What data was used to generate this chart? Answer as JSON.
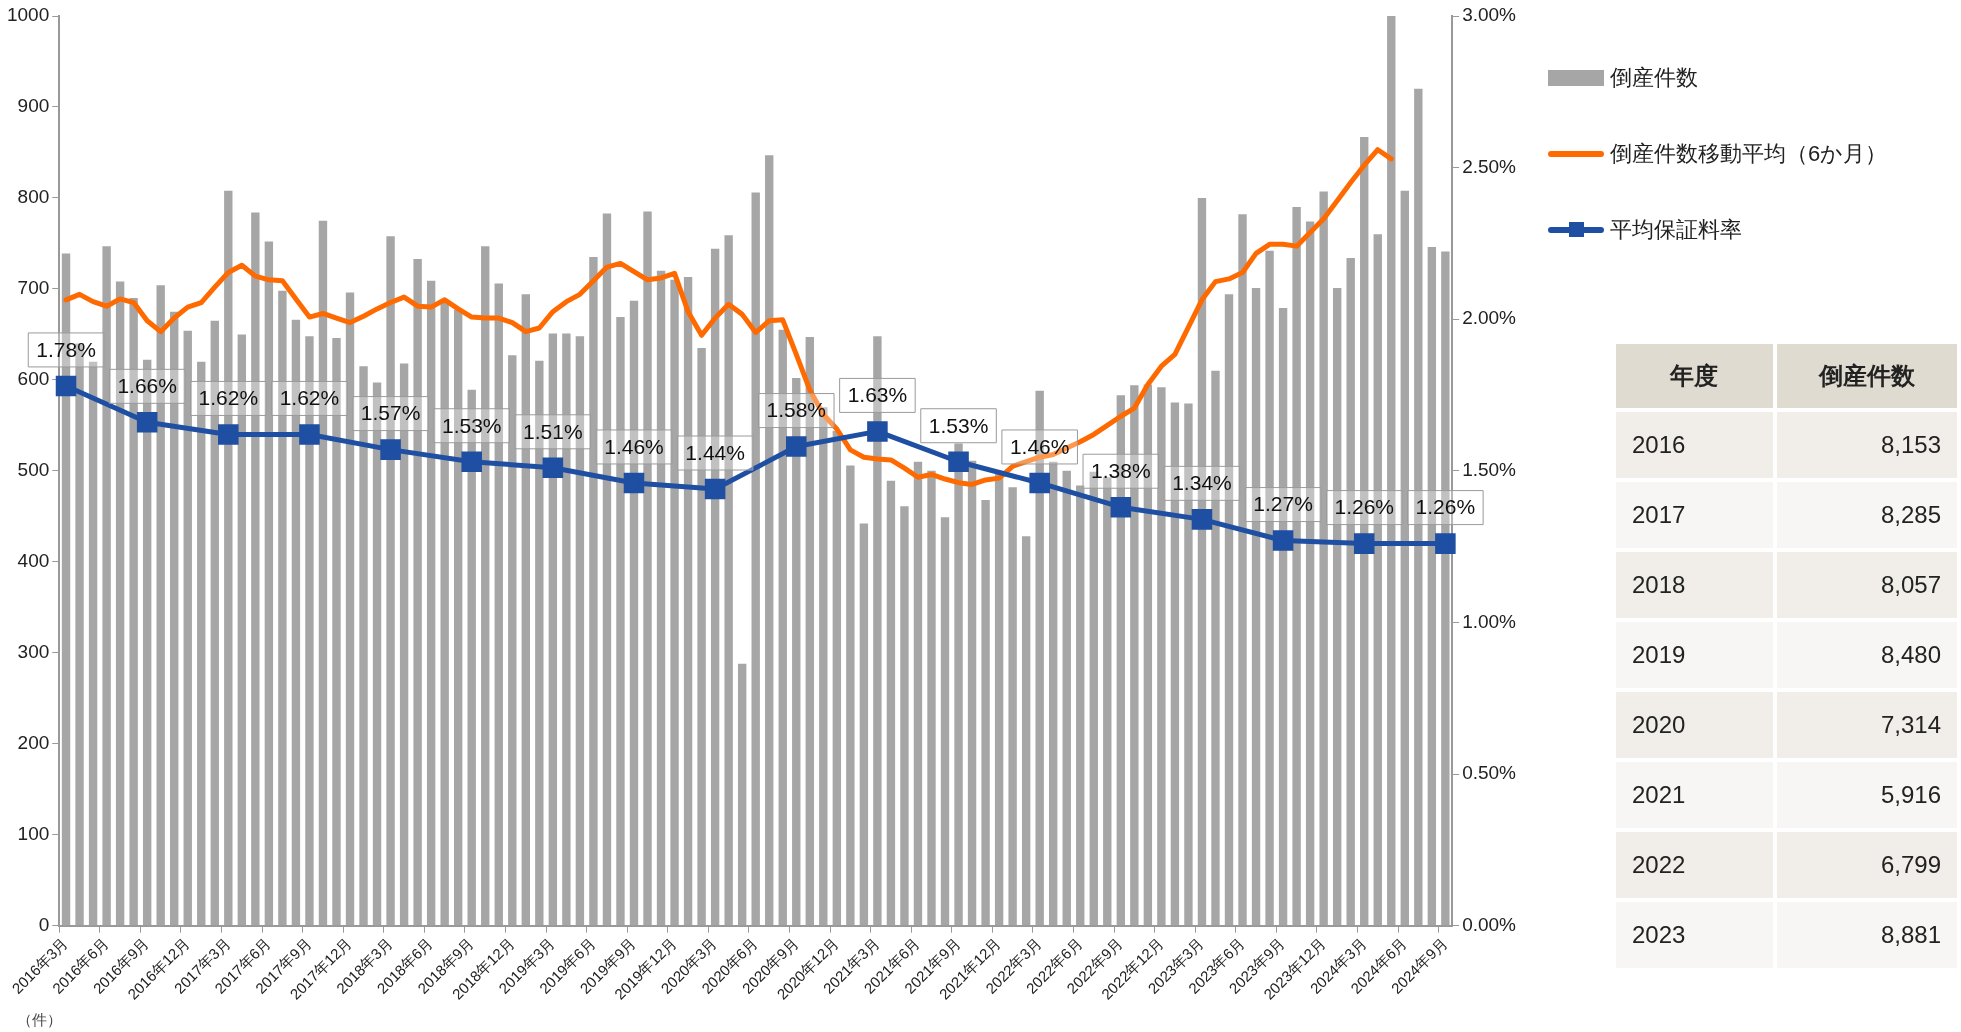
{
  "chart_data": [
    {
      "type": "bar",
      "ylabel": "（件）",
      "categories": [
        "2016年3月",
        null,
        null,
        "2016年6月",
        null,
        null,
        "2016年9月",
        null,
        null,
        "2016年12月",
        null,
        null,
        "2017年3月",
        null,
        null,
        "2017年6月",
        null,
        null,
        "2017年9月",
        null,
        null,
        "2017年12月",
        null,
        null,
        "2018年3月",
        null,
        null,
        "2018年6月",
        null,
        null,
        "2018年9月",
        null,
        null,
        "2018年12月",
        null,
        null,
        "2019年3月",
        null,
        null,
        "2019年6月",
        null,
        null,
        "2019年9月",
        null,
        null,
        "2019年12月",
        null,
        null,
        "2020年3月",
        null,
        null,
        "2020年6月",
        null,
        null,
        "2020年9月",
        null,
        null,
        "2020年12月",
        null,
        null,
        "2021年3月",
        null,
        null,
        "2021年6月",
        null,
        null,
        "2021年9月",
        null,
        null,
        "2021年12月",
        null,
        null,
        "2022年3月",
        null,
        null,
        "2022年6月",
        null,
        null,
        "2022年9月",
        null,
        null,
        "2022年12月",
        null,
        null,
        "2023年3月",
        null,
        null,
        "2023年6月",
        null,
        null,
        "2023年9月",
        null,
        null,
        "2023年12月",
        null,
        null,
        "2024年3月",
        null,
        null,
        "2024年6月",
        null,
        null,
        "2024年9月"
      ],
      "series": [
        {
          "name": "倒産件数",
          "type": "bar",
          "color": "#a6a6a6",
          "values": [
            739,
            640,
            620,
            747,
            708,
            690,
            622,
            704,
            675,
            654,
            620,
            665,
            808,
            650,
            784,
            752,
            698,
            666,
            648,
            775,
            646,
            696,
            615,
            597,
            758,
            618,
            733,
            709,
            685,
            677,
            589,
            747,
            706,
            627,
            694,
            621,
            651,
            651,
            648,
            735,
            783,
            669,
            687,
            785,
            720,
            710,
            713,
            635,
            744,
            759,
            288,
            806,
            847,
            655,
            602,
            647,
            570,
            544,
            506,
            442,
            648,
            489,
            461,
            510,
            500,
            449,
            530,
            511,
            468,
            500,
            482,
            428,
            588,
            510,
            500,
            484,
            499,
            493,
            583,
            594,
            595,
            592,
            575,
            574,
            800,
            610,
            694,
            782,
            701,
            742,
            679,
            790,
            774,
            807,
            701,
            734,
            867,
            760,
            1000,
            808,
            920,
            746,
            741
          ]
        },
        {
          "name": "倒産件数移動平均（6か月）",
          "type": "line",
          "color": "#ff6a00",
          "marker": "none",
          "values": [
            688,
            694,
            686,
            681,
            689,
            685,
            665,
            653,
            668,
            680,
            685,
            702,
            718,
            726,
            714,
            710,
            709,
            689,
            669,
            673,
            668,
            663,
            670,
            678,
            685,
            691,
            681,
            680,
            688,
            678,
            669,
            668,
            668,
            663,
            653,
            657,
            675,
            686,
            694,
            709,
            724,
            728,
            719,
            710,
            712,
            717,
            675,
            649,
            668,
            683,
            672,
            652,
            665,
            666,
            628,
            589,
            562,
            546,
            523,
            515,
            513,
            512,
            503,
            493,
            496,
            491,
            487,
            485,
            490,
            492,
            505,
            510,
            515,
            518,
            525,
            532,
            540,
            550,
            560,
            569,
            595,
            615,
            628,
            658,
            688,
            708,
            711,
            718,
            739,
            749,
            749,
            747,
            762,
            777,
            797,
            817,
            836,
            853,
            843,
            null,
            null,
            null,
            null
          ]
        },
        {
          "name": "平均保証料率",
          "type": "line",
          "color": "#1f4fa3",
          "marker": "square",
          "axis": "y2",
          "values": [
            1.78,
            null,
            null,
            null,
            null,
            null,
            1.66,
            null,
            null,
            null,
            null,
            null,
            1.62,
            null,
            null,
            null,
            null,
            null,
            1.62,
            null,
            null,
            null,
            null,
            null,
            1.57,
            null,
            null,
            null,
            null,
            null,
            1.53,
            null,
            null,
            null,
            null,
            null,
            1.51,
            null,
            null,
            null,
            null,
            null,
            1.46,
            null,
            null,
            null,
            null,
            null,
            1.44,
            null,
            null,
            null,
            null,
            null,
            1.58,
            null,
            null,
            null,
            null,
            null,
            1.63,
            null,
            null,
            null,
            null,
            null,
            1.53,
            null,
            null,
            null,
            null,
            null,
            1.46,
            null,
            null,
            null,
            null,
            null,
            1.38,
            null,
            null,
            null,
            null,
            null,
            1.34,
            null,
            null,
            null,
            null,
            null,
            1.27,
            null,
            null,
            null,
            null,
            null,
            1.26,
            null,
            null,
            null,
            null,
            null,
            1.26
          ],
          "value_labels": [
            "1.78%",
            null,
            null,
            null,
            null,
            null,
            "1.66%",
            null,
            null,
            null,
            null,
            null,
            "1.62%",
            null,
            null,
            null,
            null,
            null,
            "1.62%",
            null,
            null,
            null,
            null,
            null,
            "1.57%",
            null,
            null,
            null,
            null,
            null,
            "1.53%",
            null,
            null,
            null,
            null,
            null,
            "1.51%",
            null,
            null,
            null,
            null,
            null,
            "1.46%",
            null,
            null,
            null,
            null,
            null,
            "1.44%",
            null,
            null,
            null,
            null,
            null,
            "1.58%",
            null,
            null,
            null,
            null,
            null,
            "1.63%",
            null,
            null,
            null,
            null,
            null,
            "1.53%",
            null,
            null,
            null,
            null,
            null,
            "1.46%",
            null,
            null,
            null,
            null,
            null,
            "1.38%",
            null,
            null,
            null,
            null,
            null,
            "1.34%",
            null,
            null,
            null,
            null,
            null,
            "1.27%",
            null,
            null,
            null,
            null,
            null,
            "1.26%",
            null,
            null,
            null,
            null,
            null,
            "1.26%"
          ]
        }
      ],
      "ylim": [
        0,
        1000
      ],
      "yticks": [
        0,
        100,
        200,
        300,
        400,
        500,
        600,
        700,
        800,
        900,
        1000
      ],
      "y2lim": [
        0,
        3
      ],
      "y2ticks": [
        {
          "value": 0,
          "label": "0.00%"
        },
        {
          "value": 0.5,
          "label": "0.50%"
        },
        {
          "value": 1,
          "label": "1.00%"
        },
        {
          "value": 1.5,
          "label": "1.50%"
        },
        {
          "value": 2,
          "label": "2.00%"
        },
        {
          "value": 2.5,
          "label": "2.50%"
        },
        {
          "value": 3,
          "label": "3.00%"
        }
      ],
      "grid": false,
      "legend": "right",
      "annotations": [
        "年度",
        "倒産件数",
        "2016",
        "8,153",
        "2017",
        "8,285",
        "2018",
        "8,057",
        "2019",
        "8,480",
        "2020",
        "7,314",
        "2021",
        "5,916",
        "2022",
        "6,799",
        "2023",
        "8,881"
      ]
    }
  ]
}
